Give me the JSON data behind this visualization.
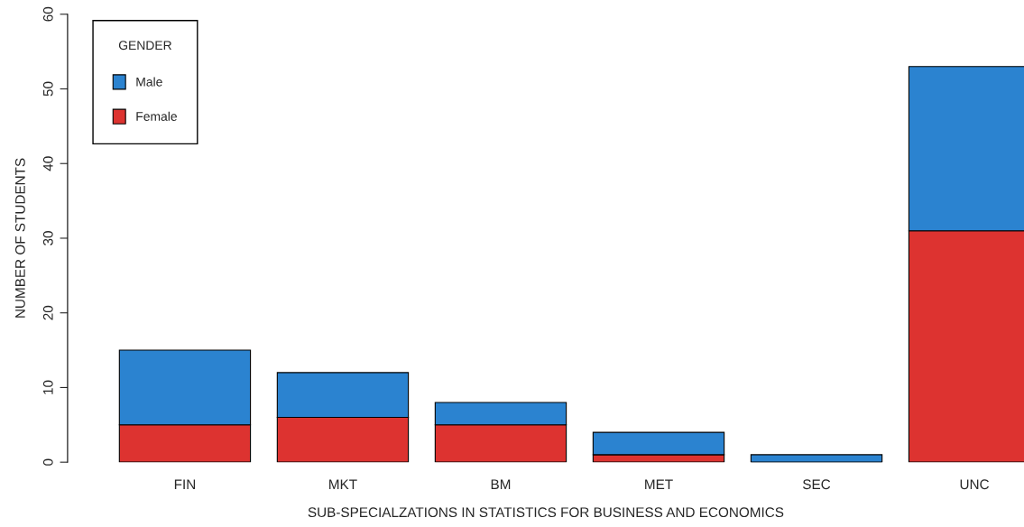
{
  "chart_data": {
    "type": "bar",
    "stacked": true,
    "xlabel": "SUB-SPECIALZATIONS IN STATISTICS FOR BUSINESS AND ECONOMICS",
    "ylabel": "NUMBER OF STUDENTS",
    "categories": [
      "FIN",
      "MKT",
      "BM",
      "MET",
      "SEC",
      "UNC"
    ],
    "series": [
      {
        "name": "Female",
        "color": "#dd3330",
        "values": [
          5,
          6,
          5,
          1,
          0,
          31
        ]
      },
      {
        "name": "Male",
        "color": "#2b83d0",
        "values": [
          10,
          6,
          3,
          3,
          1,
          22
        ]
      }
    ],
    "legend_title": "GENDER",
    "legend": "top left",
    "ylim": [
      0,
      60
    ],
    "yticks": [
      0,
      10,
      20,
      30,
      40,
      50,
      60
    ],
    "grid": false
  }
}
